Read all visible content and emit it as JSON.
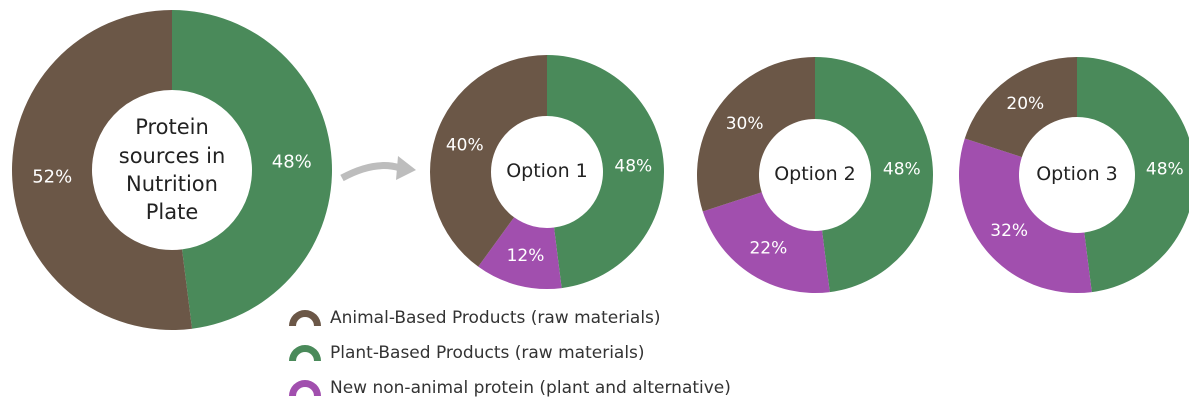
{
  "legend": {
    "names": [
      "Animal-Based Products (raw materials)",
      "Plant-Based Products (raw materials)",
      "New non-animal protein (plant and alternative)"
    ],
    "colors": [
      "#6b5747",
      "#4a8a5a",
      "#a14fae"
    ]
  },
  "chart_data": [
    {
      "type": "donut",
      "center_text": "Protein sources in Nutrition Plate",
      "values": [
        52,
        48
      ],
      "value_labels": [
        "52%",
        "48%"
      ]
    },
    {
      "type": "donut",
      "center_text": "Option 1",
      "values": [
        40,
        48,
        12
      ],
      "value_labels": [
        "40%",
        "48%",
        "12%"
      ]
    },
    {
      "type": "donut",
      "center_text": "Option 2",
      "values": [
        30,
        48,
        22
      ],
      "value_labels": [
        "30%",
        "48%",
        "22%"
      ]
    },
    {
      "type": "donut",
      "center_text": "Option 3",
      "values": [
        20,
        48,
        32
      ],
      "value_labels": [
        "20%",
        "48%",
        "32%"
      ]
    }
  ]
}
